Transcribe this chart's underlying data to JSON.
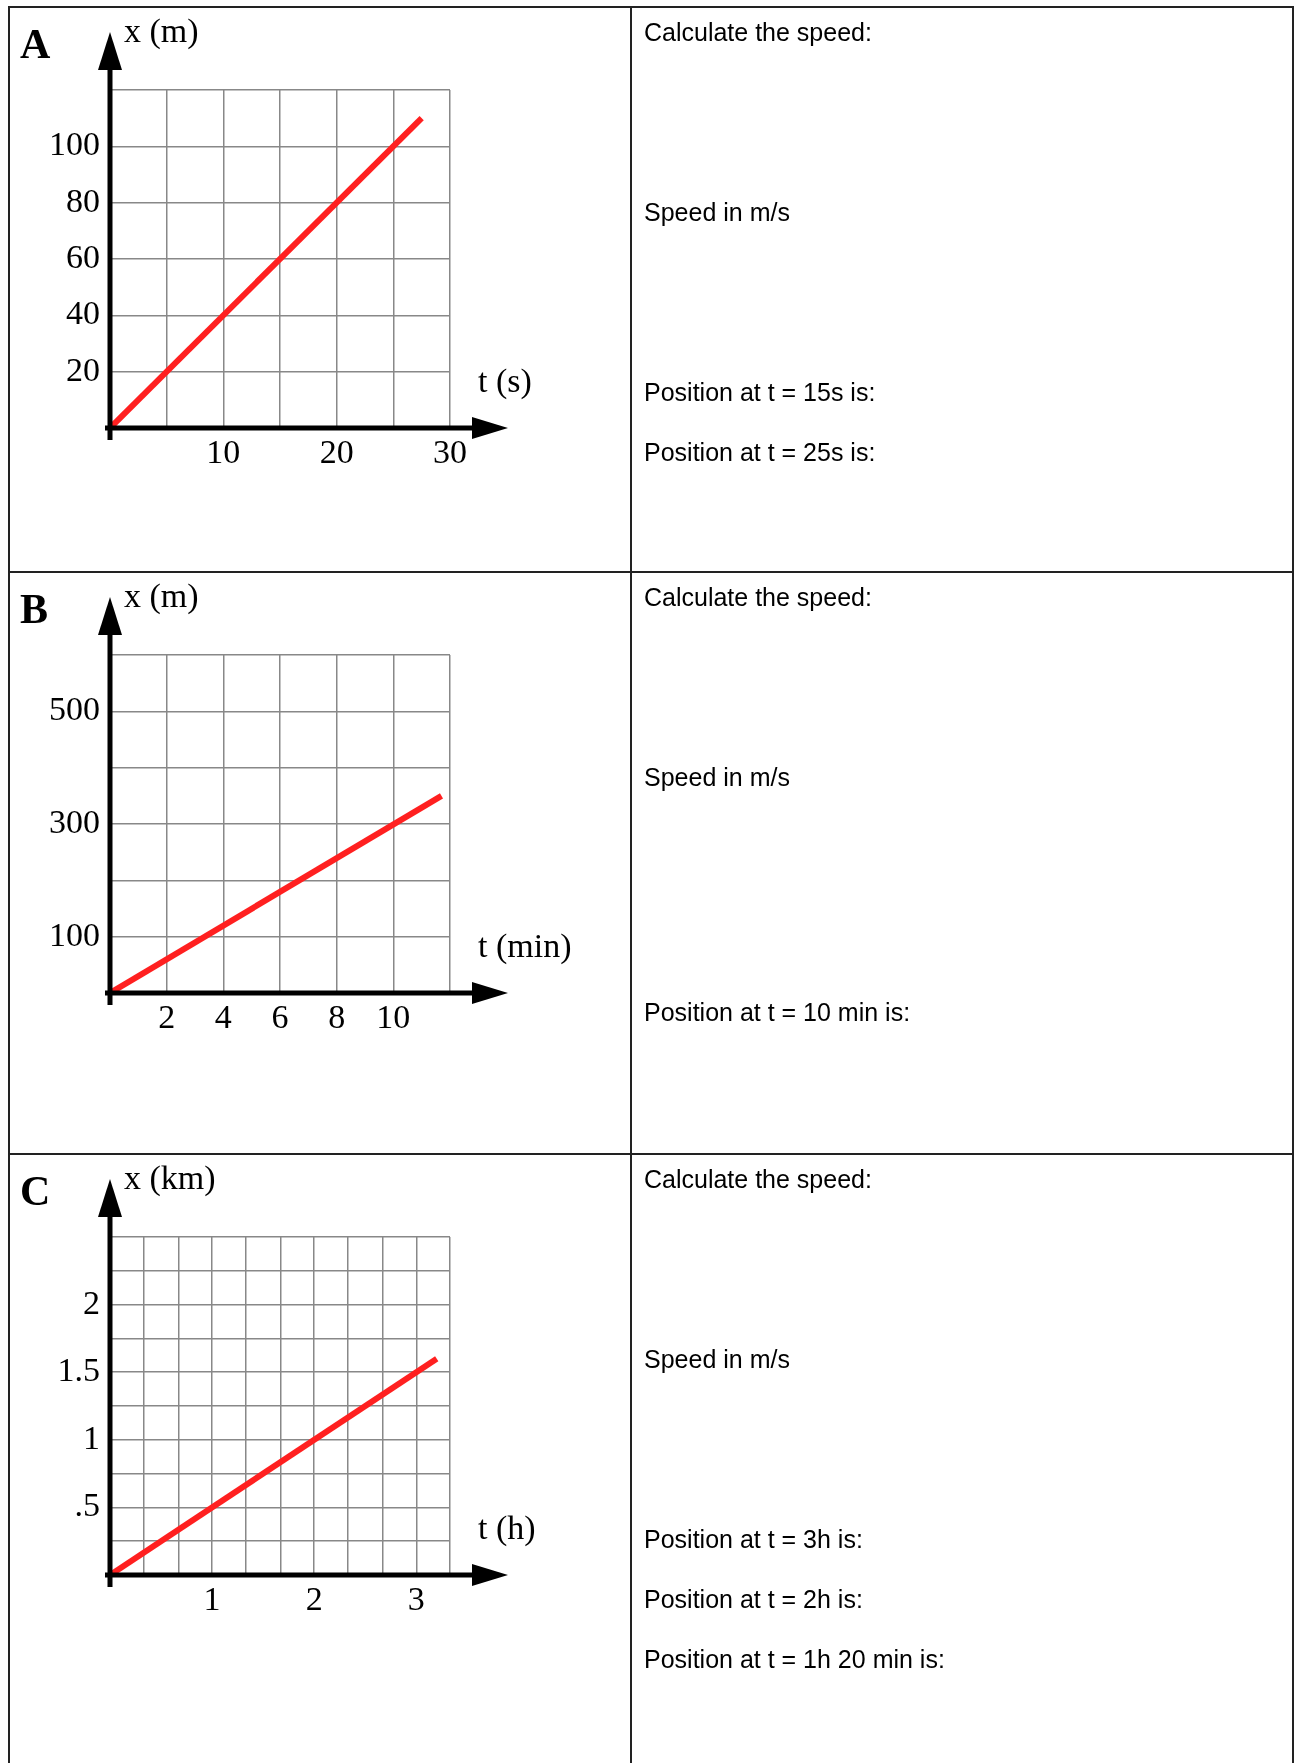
{
  "chart_data": [
    {
      "type": "line",
      "title": "A",
      "xlabel": "t (s)",
      "ylabel": "x (m)",
      "x": [
        0,
        27.5
      ],
      "values": [
        0,
        110
      ],
      "color": "#ff2020",
      "xlim": [
        0,
        30
      ],
      "ylim": [
        0,
        120
      ],
      "xticks": [
        {
          "value": 0,
          "label": null
        },
        {
          "value": 5,
          "label": null
        },
        10,
        {
          "value": 15,
          "label": null
        },
        20,
        {
          "value": 25,
          "label": null
        },
        30
      ],
      "yticks": [
        {
          "value": 0,
          "label": null
        },
        20,
        40,
        60,
        80,
        100,
        {
          "value": 120,
          "label": null
        }
      ],
      "grid": true,
      "annotations": [
        "Calculate the speed:",
        "Speed in m/s",
        "Position at t = 15s is:",
        "Position at t = 25s is:"
      ]
    },
    {
      "type": "line",
      "title": "B",
      "xlabel": "t (min)",
      "ylabel": "x (m)",
      "x": [
        0,
        11.7
      ],
      "values": [
        0,
        350
      ],
      "color": "#ff2020",
      "xlim": [
        0,
        12
      ],
      "ylim": [
        0,
        600
      ],
      "xticks": [
        {
          "value": 0,
          "label": null
        },
        2,
        4,
        6,
        8,
        10,
        {
          "value": 12,
          "label": null
        }
      ],
      "yticks": [
        {
          "value": 0,
          "label": null
        },
        100,
        {
          "value": 200,
          "label": null
        },
        300,
        {
          "value": 400,
          "label": null
        },
        500,
        {
          "value": 600,
          "label": null
        }
      ],
      "grid": true,
      "annotations": [
        "Calculate the speed:",
        "Speed in m/s",
        "Position at t = 10 min is:"
      ]
    },
    {
      "type": "line",
      "title": "C",
      "xlabel": "t (h)",
      "ylabel": "x (km)",
      "x": [
        0,
        3.2
      ],
      "values": [
        0,
        1.6
      ],
      "color": "#ff2020",
      "xlim": [
        0,
        3.33
      ],
      "ylim": [
        0,
        2.5
      ],
      "xticks": [
        {
          "value": 0,
          "label": null
        },
        {
          "value": 0.33,
          "label": null
        },
        {
          "value": 0.67,
          "label": null
        },
        1,
        {
          "value": 1.33,
          "label": null
        },
        {
          "value": 1.67,
          "label": null
        },
        2,
        {
          "value": 2.33,
          "label": null
        },
        {
          "value": 2.67,
          "label": null
        },
        3,
        {
          "value": 3.33,
          "label": null
        }
      ],
      "yticks": [
        {
          "value": 0,
          "label": null
        },
        {
          "value": 0.25,
          "label": null
        },
        {
          "value": 0.5,
          "label": ".5"
        },
        {
          "value": 0.75,
          "label": null
        },
        1,
        {
          "value": 1.25,
          "label": null
        },
        1.5,
        {
          "value": 1.75,
          "label": null
        },
        2,
        {
          "value": 2.25,
          "label": null
        },
        {
          "value": 2.5,
          "label": null
        }
      ],
      "grid": true,
      "annotations": [
        "Calculate the speed:",
        "Speed in m/s",
        "Position at t = 3h is:",
        "Position at t = 2h is:",
        "Position at t = 1h 20 min is:"
      ]
    }
  ]
}
